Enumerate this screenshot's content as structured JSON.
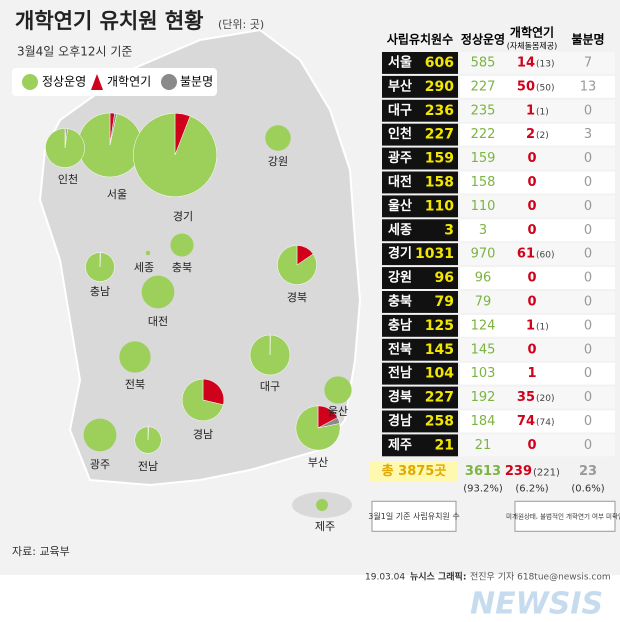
{
  "header": {
    "title": "개학연기 유치원 현황",
    "unit": "(단위: 곳)",
    "subtitle": "3월4일 오후12시 기준"
  },
  "legend": {
    "normal": "정상운영",
    "delay": "개학연기",
    "unknown": "불분명"
  },
  "table": {
    "columns": {
      "total": "사립유치원수",
      "normal": "정상운영",
      "delay": "개학연기",
      "self_care": "(자체돌봄제공)",
      "unknown": "불분명"
    },
    "rows": [
      {
        "region": "서울",
        "total": 606,
        "normal": 585,
        "delay": 14,
        "self_care": "(13)",
        "unknown": 7
      },
      {
        "region": "부산",
        "total": 290,
        "normal": 227,
        "delay": 50,
        "self_care": "(50)",
        "unknown": 13
      },
      {
        "region": "대구",
        "total": 236,
        "normal": 235,
        "delay": 1,
        "self_care": "(1)",
        "unknown": 0
      },
      {
        "region": "인천",
        "total": 227,
        "normal": 222,
        "delay": 2,
        "self_care": "(2)",
        "unknown": 3
      },
      {
        "region": "광주",
        "total": 159,
        "normal": 159,
        "delay": 0,
        "unknown": 0
      },
      {
        "region": "대전",
        "total": 158,
        "normal": 158,
        "delay": 0,
        "unknown": 0
      },
      {
        "region": "울산",
        "total": 110,
        "normal": 110,
        "delay": 0,
        "unknown": 0
      },
      {
        "region": "세종",
        "total": 3,
        "normal": 3,
        "delay": 0,
        "unknown": 0
      },
      {
        "region": "경기",
        "total": 1031,
        "normal": 970,
        "delay": 61,
        "self_care": "(60)",
        "unknown": 0
      },
      {
        "region": "강원",
        "total": 96,
        "normal": 96,
        "delay": 0,
        "unknown": 0
      },
      {
        "region": "충북",
        "total": 79,
        "normal": 79,
        "delay": 0,
        "unknown": 0
      },
      {
        "region": "충남",
        "total": 125,
        "normal": 124,
        "delay": 1,
        "self_care": "(1)",
        "unknown": 0
      },
      {
        "region": "전북",
        "total": 145,
        "normal": 145,
        "delay": 0,
        "unknown": 0
      },
      {
        "region": "전남",
        "total": 104,
        "normal": 103,
        "delay": 1,
        "unknown": 0
      },
      {
        "region": "경북",
        "total": 227,
        "normal": 192,
        "delay": 35,
        "self_care": "(20)",
        "unknown": 0
      },
      {
        "region": "경남",
        "total": 258,
        "normal": 184,
        "delay": 74,
        "self_care": "(74)",
        "unknown": 0
      },
      {
        "region": "제주",
        "total": 21,
        "normal": 21,
        "delay": 0,
        "unknown": 0
      }
    ],
    "totals": {
      "total": "총 3875곳",
      "normal": 3613,
      "normal_pct": "(93.2%)",
      "delay": 239,
      "self_care": "(221)",
      "delay_pct": "(6.2%)",
      "unknown": 23,
      "unknown_pct": "(0.6%)"
    }
  },
  "notes": {
    "total_note": "3월1일 기준 사립유치원 수",
    "unknown_note": "미개원상태, 불법적인 개학연기 여부 미확인"
  },
  "source": "자료: 교육부",
  "footer": {
    "date": "19.03.04",
    "agency": "뉴시스 그래픽:",
    "author": "전진우 기자 618tue@newsis.com",
    "watermark": "NEWSIS"
  }
}
